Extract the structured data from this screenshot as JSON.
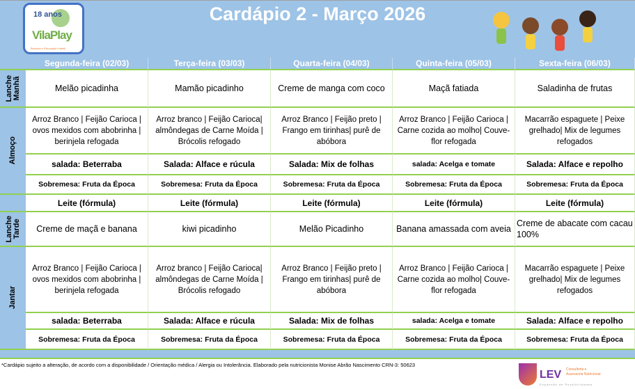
{
  "title": "Cardápio 2 - Março 2026",
  "logo": {
    "years": "18 anos",
    "brand": "VilaPlay",
    "tagline": "Berçário e Educação Infantil"
  },
  "colors": {
    "header_blue": "#9dc3e6",
    "grid_green": "#92d050"
  },
  "days": [
    "Segunda-feira (02/03)",
    "Terça-feira (03/03)",
    "Quarta-feira (04/03)",
    "Quinta-feira (05/03)",
    "Sexta-feira (06/03)"
  ],
  "labels": {
    "lanche_manha": "Lanche\nManhã",
    "almoco": "Almoço",
    "lanche_tarde": "Lanche\nTarde",
    "jantar": "Jantar"
  },
  "lanche_manha": [
    "Melão picadinha",
    "Mamão picadinho",
    "Creme de manga com coco",
    "Maçã fatiada",
    "Saladinha de frutas"
  ],
  "almoco": {
    "main": [
      "Arroz Branco | Feijão Carioca | ovos mexidos com abobrinha | berinjela refogada",
      "Arroz branco | Feijão Carioca| almôndegas de Carne Moída | Brócolis refogado",
      "Arroz Branco | Feijão preto | Frango em tirinhas| purê de abóbora",
      "Arroz Branco | Feijão Carioca | Carne cozida ao molho| Couve-flor refogada",
      "Macarrão espaguete | Peixe grelhado| Mix de legumes refogados"
    ],
    "salada": [
      "salada: Beterraba",
      "Salada: Alface e rúcula",
      "Salada: Mix de folhas",
      "salada: Acelga e tomate",
      "Salada: Alface e repolho"
    ],
    "sobremesa": [
      "Sobremesa: Fruta da Época",
      "Sobremesa: Fruta da Época",
      "Sobremesa: Fruta da Época",
      "Sobremesa: Fruta da Época",
      "Sobremesa: Fruta da Época"
    ]
  },
  "leite": [
    "Leite (fórmula)",
    "Leite (fórmula)",
    "Leite (fórmula)",
    "Leite (fórmula)",
    "Leite (fórmula)"
  ],
  "lanche_tarde": [
    "Creme de maçã e banana",
    "kiwi picadinho",
    "Melão Picadinho",
    "Banana amassada com aveia",
    "Creme de abacate com cacau 100%"
  ],
  "jantar": {
    "main": [
      "Arroz Branco | Feijão Carioca | ovos mexidos com abobrinha | berinjela refogada",
      "Arroz branco | Feijão Carioca| almôndegas de Carne Moída | Brócolis refogado",
      "Arroz Branco | Feijão preto | Frango em tirinhas| purê de abóbora",
      "Arroz Branco | Feijão Carioca | Carne cozida ao molho| Couve-flor refogada",
      "Macarrão espaguete | Peixe grelhado| Mix de legumes refogados"
    ],
    "salada": [
      "salada: Beterraba",
      "Salada: Alface e rúcula",
      "Salada: Mix de folhas",
      "salada: Acelga e tomate",
      "Salada: Alface e repolho"
    ],
    "sobremesa": [
      "Sobremesa: Fruta da Época",
      "Sobremesa: Fruta da Época",
      "Sobremesa: Fruta da Época",
      "Sobremesa: Fruta da Época",
      "Sobremesa: Fruta da Época"
    ]
  },
  "footnote": "*Cardápio sujeito a alteração, de acordo com a disponibilidade / Orientação médica / Alergia ou Intolerância. Elaborado pela nutricionista Monise Abrão Nascimento CRN-3: 50623",
  "lev_logo": {
    "name": "LEV",
    "tagline1": "Consultoria e",
    "tagline2": "Assessoria Nutricional",
    "slogan": "Expansão de Possibilidades"
  }
}
